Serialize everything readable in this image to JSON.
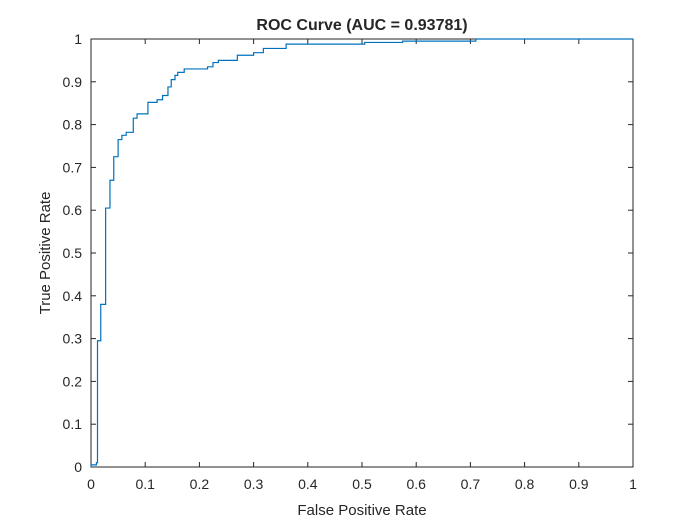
{
  "chart_data": {
    "type": "line",
    "title": "ROC Curve (AUC = 0.93781)",
    "xlabel": "False Positive Rate",
    "ylabel": "True Positive Rate",
    "xlim": [
      0,
      1
    ],
    "ylim": [
      0,
      1
    ],
    "xticks": [
      "0",
      "0.1",
      "0.2",
      "0.3",
      "0.4",
      "0.5",
      "0.6",
      "0.7",
      "0.8",
      "0.9",
      "1"
    ],
    "yticks": [
      "0",
      "0.1",
      "0.2",
      "0.3",
      "0.4",
      "0.5",
      "0.6",
      "0.7",
      "0.8",
      "0.9",
      "1"
    ],
    "grid": false,
    "legend": "none",
    "series": [
      {
        "color": "#0072BD",
        "points": [
          [
            0,
            0
          ],
          [
            0,
            0.005
          ],
          [
            0.01,
            0.005
          ],
          [
            0.01,
            0.01
          ],
          [
            0.012,
            0.01
          ],
          [
            0.012,
            0.295
          ],
          [
            0.018,
            0.295
          ],
          [
            0.018,
            0.38
          ],
          [
            0.027,
            0.38
          ],
          [
            0.027,
            0.605
          ],
          [
            0.035,
            0.605
          ],
          [
            0.035,
            0.67
          ],
          [
            0.042,
            0.67
          ],
          [
            0.042,
            0.725
          ],
          [
            0.05,
            0.725
          ],
          [
            0.05,
            0.765
          ],
          [
            0.057,
            0.765
          ],
          [
            0.057,
            0.775
          ],
          [
            0.065,
            0.775
          ],
          [
            0.065,
            0.782
          ],
          [
            0.078,
            0.782
          ],
          [
            0.078,
            0.815
          ],
          [
            0.085,
            0.815
          ],
          [
            0.085,
            0.825
          ],
          [
            0.105,
            0.825
          ],
          [
            0.105,
            0.852
          ],
          [
            0.122,
            0.852
          ],
          [
            0.122,
            0.858
          ],
          [
            0.132,
            0.858
          ],
          [
            0.132,
            0.868
          ],
          [
            0.142,
            0.868
          ],
          [
            0.142,
            0.888
          ],
          [
            0.148,
            0.888
          ],
          [
            0.148,
            0.905
          ],
          [
            0.155,
            0.905
          ],
          [
            0.155,
            0.915
          ],
          [
            0.16,
            0.915
          ],
          [
            0.16,
            0.922
          ],
          [
            0.172,
            0.922
          ],
          [
            0.172,
            0.93
          ],
          [
            0.215,
            0.93
          ],
          [
            0.215,
            0.935
          ],
          [
            0.225,
            0.935
          ],
          [
            0.225,
            0.945
          ],
          [
            0.235,
            0.945
          ],
          [
            0.235,
            0.95
          ],
          [
            0.27,
            0.95
          ],
          [
            0.27,
            0.962
          ],
          [
            0.3,
            0.962
          ],
          [
            0.3,
            0.968
          ],
          [
            0.318,
            0.968
          ],
          [
            0.318,
            0.978
          ],
          [
            0.36,
            0.978
          ],
          [
            0.36,
            0.988
          ],
          [
            0.505,
            0.988
          ],
          [
            0.505,
            0.992
          ],
          [
            0.575,
            0.992
          ],
          [
            0.575,
            0.995
          ],
          [
            0.71,
            0.995
          ],
          [
            0.71,
            1
          ],
          [
            1,
            1
          ]
        ]
      }
    ]
  }
}
